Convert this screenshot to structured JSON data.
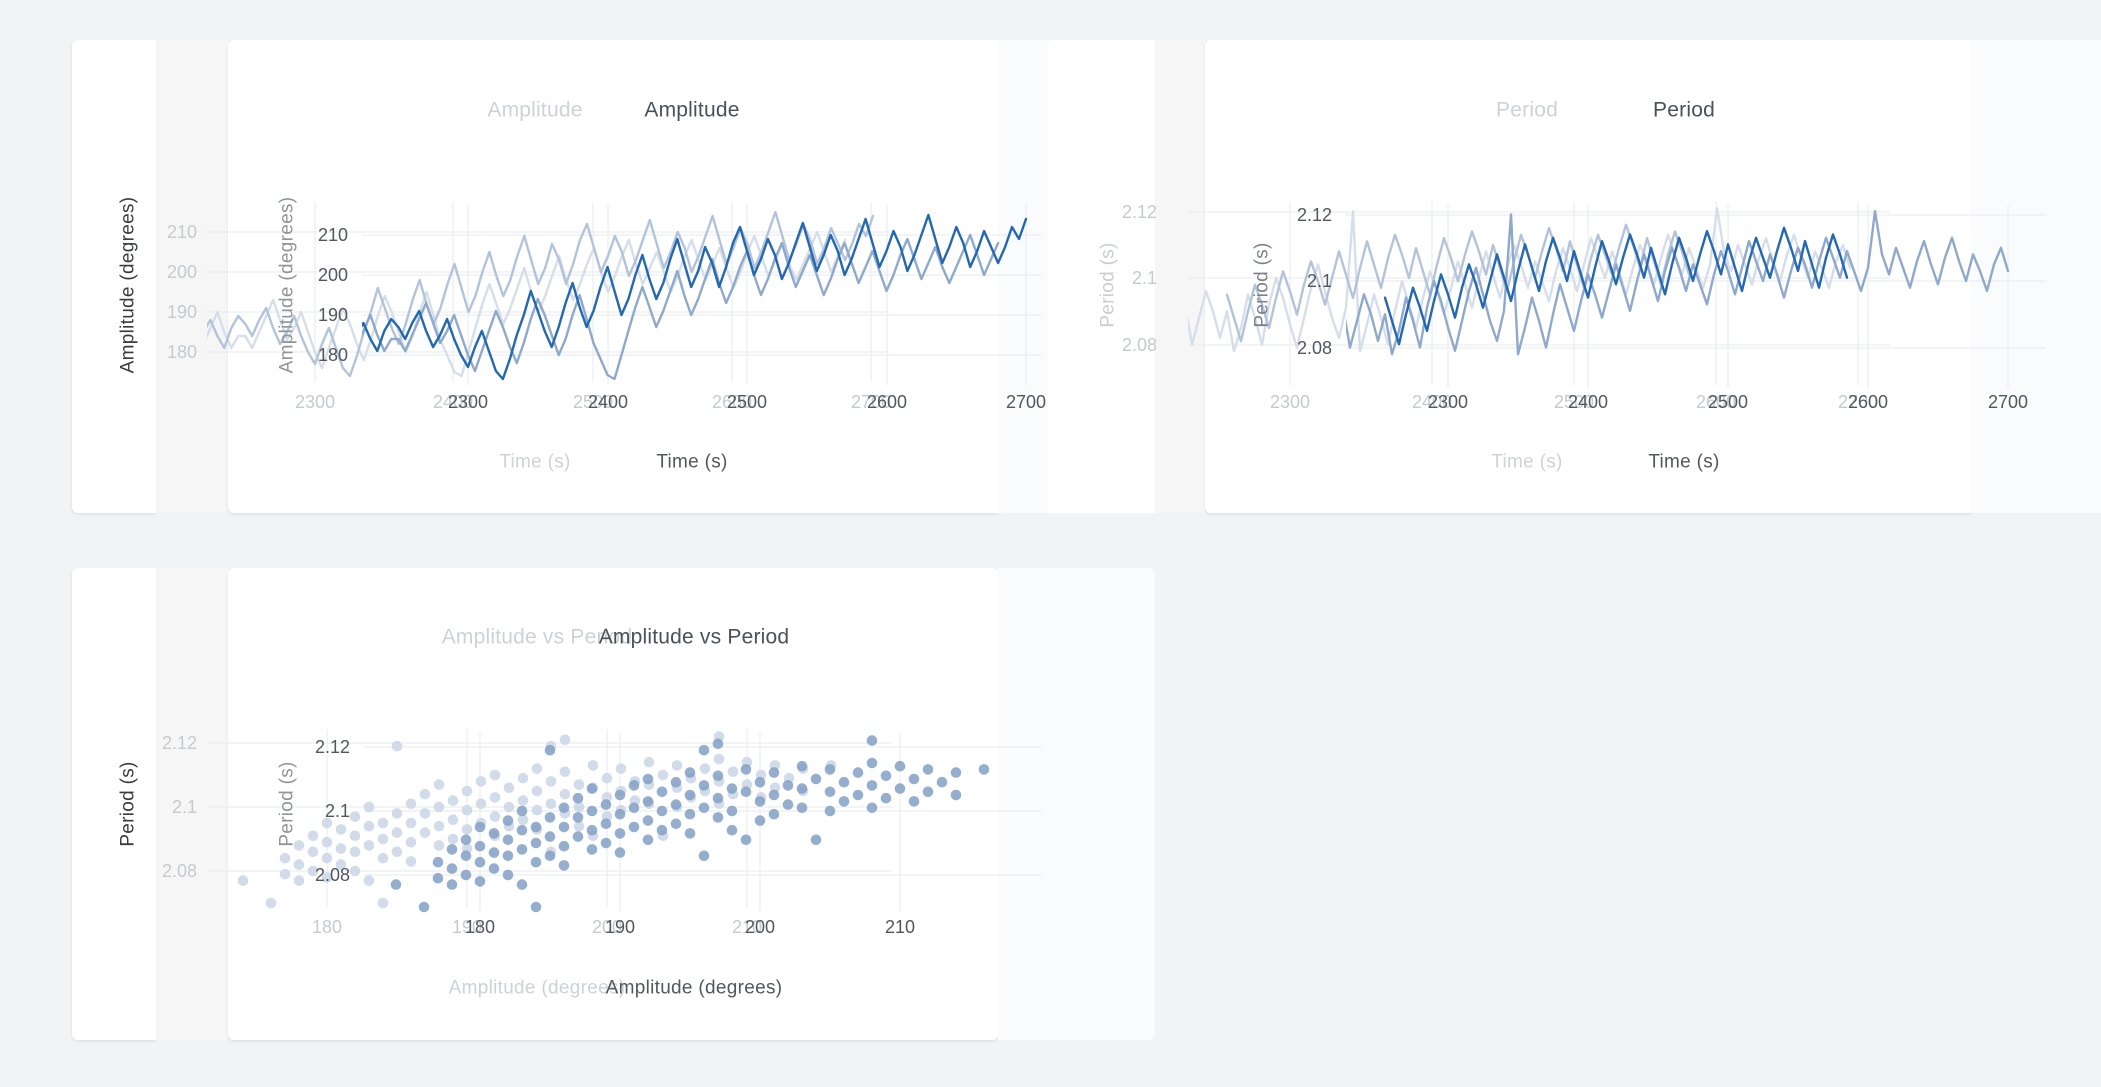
{
  "page": {
    "background": "#f2f3f4",
    "card_background": "#ffffff",
    "gap_strip_color": "#f6f6f7",
    "faint_strip_color": "#fafbfc",
    "colors": {
      "title_solid": "#4b5158",
      "title_ghost": "#ced2d6",
      "tick_solid": "#53575c",
      "tick_ghost": "#c5cacd",
      "ylabel_dark": "#383c41",
      "ylabel_gray": "#90959b",
      "ylabel_period_solid": "#7d828a",
      "ylabel_period_ghost": "#c9ced3",
      "grid": "#ebedef",
      "series1_solid": "#2368b0",
      "series2_solid": "#8fa9cc",
      "series1_ghost": "#b3c3da",
      "series2_ghost": "#d6deea",
      "scatter_solid": "#84a0c6",
      "scatter_ghost": "#ccd7e7"
    }
  },
  "charts": [
    {
      "id": "amplitude",
      "title": "Amplitude",
      "xlabel": "Time (s)",
      "ylabel": "Amplitude (degrees)",
      "yticks": [
        "210",
        "200",
        "190",
        "180"
      ],
      "xticks": [
        "2300",
        "2400",
        "2500",
        "2600",
        "2700"
      ]
    },
    {
      "id": "period",
      "title": "Period",
      "xlabel": "Time (s)",
      "ylabel": "Period (s)",
      "yticks": [
        "2.12",
        "2.1",
        "2.08"
      ],
      "xticks": [
        "2300",
        "2400",
        "2500",
        "2600",
        "2700"
      ]
    },
    {
      "id": "amp-vs-period",
      "title": "Amplitude vs Period",
      "xlabel": "Amplitude (degrees)",
      "ylabel": "Period (s)",
      "yticks": [
        "2.12",
        "2.1",
        "2.08"
      ],
      "xticks": [
        "180",
        "190",
        "200",
        "210"
      ]
    }
  ],
  "chart_data": [
    {
      "type": "line",
      "title": "Amplitude",
      "xlabel": "Time (s)",
      "ylabel": "Amplitude (degrees)",
      "x_range": [
        2220,
        2710
      ],
      "y_range": [
        172,
        216
      ],
      "xticks": [
        2300,
        2400,
        2500,
        2600,
        2700
      ],
      "yticks": [
        210,
        200,
        190,
        180
      ],
      "grid": true,
      "legend": "none",
      "series": [
        {
          "name": "amplitude-run-1",
          "x_start": 2220,
          "x_step": 5,
          "values": [
            185,
            188,
            184,
            181,
            186,
            189,
            187,
            184,
            188,
            191,
            186,
            182,
            185,
            189,
            184,
            180,
            177,
            182,
            186,
            181,
            176,
            174,
            179,
            185,
            190,
            196,
            191,
            186,
            182,
            187,
            193,
            198,
            192,
            187,
            191,
            197,
            202,
            196,
            190,
            194,
            200,
            205,
            199,
            194,
            198,
            204,
            209,
            203,
            197,
            201,
            207,
            203,
            197,
            202,
            208,
            212,
            206,
            200,
            204,
            209,
            205,
            199,
            203,
            208,
            213,
            207,
            201,
            205,
            210,
            206,
            200,
            204,
            209,
            214,
            208,
            202,
            206,
            211,
            207,
            201,
            205,
            210,
            215,
            209,
            203,
            207,
            212,
            208,
            202,
            206,
            211,
            207,
            203,
            207,
            212,
            209,
            214
          ]
        },
        {
          "name": "amplitude-run-2",
          "x_start": 2220,
          "x_step": 5,
          "values": [
            182,
            186,
            190,
            185,
            181,
            184,
            184,
            181,
            185,
            189,
            193,
            188,
            183,
            186,
            190,
            185,
            180,
            176,
            181,
            186,
            191,
            187,
            182,
            178,
            183,
            189,
            194,
            190,
            185,
            180,
            184,
            190,
            195,
            189,
            183,
            179,
            175,
            174,
            180,
            186,
            192,
            197,
            192,
            187,
            191,
            196,
            201,
            195,
            190,
            194,
            199,
            204,
            198,
            193,
            197,
            202,
            206,
            200,
            195,
            199,
            204,
            208,
            202,
            197,
            201,
            205,
            200,
            195,
            199,
            204,
            208,
            203,
            198,
            202,
            206,
            201,
            196,
            200,
            205,
            209,
            204,
            199,
            203,
            207,
            202,
            198,
            202,
            206,
            210,
            205,
            200,
            204,
            208
          ]
        }
      ]
    },
    {
      "type": "line",
      "title": "Period",
      "xlabel": "Time (s)",
      "ylabel": "Period (s)",
      "x_range": [
        2220,
        2710
      ],
      "y_range": [
        2.065,
        2.125
      ],
      "xticks": [
        2300,
        2400,
        2500,
        2600,
        2700
      ],
      "yticks": [
        2.12,
        2.1,
        2.08
      ],
      "grid": true,
      "legend": "none",
      "series": [
        {
          "name": "period-run-1",
          "x_start": 2255,
          "x_step": 5,
          "values": [
            2.095,
            2.088,
            2.081,
            2.09,
            2.098,
            2.092,
            2.085,
            2.094,
            2.102,
            2.096,
            2.089,
            2.098,
            2.105,
            2.099,
            2.092,
            2.1,
            2.108,
            2.101,
            2.094,
            2.103,
            2.111,
            2.104,
            2.097,
            2.106,
            2.113,
            2.107,
            2.1,
            2.109,
            2.102,
            2.095,
            2.104,
            2.112,
            2.106,
            2.099,
            2.107,
            2.114,
            2.108,
            2.101,
            2.11,
            2.103,
            2.096,
            2.105,
            2.113,
            2.107,
            2.1,
            2.108,
            2.115,
            2.109,
            2.102,
            2.111,
            2.104,
            2.097,
            2.106,
            2.113,
            2.107,
            2.101,
            2.109,
            2.116,
            2.11,
            2.103,
            2.112,
            2.105,
            2.098,
            2.107,
            2.114,
            2.108,
            2.101
          ]
        },
        {
          "name": "period-run-2",
          "x_start": 2220,
          "x_step": 5,
          "values": [
            2.085,
            2.092,
            2.08,
            2.088,
            2.096,
            2.09,
            2.082,
            2.09,
            2.078,
            2.085,
            2.095,
            2.088,
            2.08,
            2.092,
            2.1,
            2.094,
            2.086,
            2.079,
            2.088,
            2.097,
            2.104,
            2.096,
            2.088,
            2.082,
            2.091,
            2.12,
            2.078,
            2.086,
            2.095,
            2.088,
            2.08,
            2.09,
            2.099,
            2.092,
            2.085,
            2.094,
            2.102,
            2.096,
            2.089,
            2.097,
            2.105,
            2.098,
            2.091,
            2.1,
            2.108,
            2.101,
            2.094,
            2.103,
            2.11,
            2.104,
            2.097,
            2.105,
            2.099,
            2.093,
            2.102,
            2.109,
            2.103,
            2.096,
            2.104,
            2.112,
            2.106,
            2.1,
            2.108,
            2.102,
            2.095,
            2.103,
            2.11,
            2.105,
            2.098,
            2.106,
            2.113,
            2.107,
            2.101,
            2.109,
            2.103,
            2.097,
            2.104,
            2.121,
            2.108,
            2.102,
            2.11,
            2.104,
            2.098,
            2.106,
            2.112,
            2.105,
            2.099,
            2.107,
            2.113,
            2.106,
            2.1,
            2.108,
            2.103,
            2.097,
            2.105,
            2.11,
            2.103
          ]
        }
      ]
    },
    {
      "type": "scatter",
      "title": "Amplitude vs Period",
      "xlabel": "Amplitude (degrees)",
      "ylabel": "Period (s)",
      "x_range": [
        172,
        218
      ],
      "y_range": [
        2.065,
        2.125
      ],
      "xticks": [
        180,
        190,
        200,
        210
      ],
      "yticks": [
        2.12,
        2.1,
        2.08
      ],
      "grid": true,
      "legend": "none",
      "points": [
        [
          174,
          2.077
        ],
        [
          176,
          2.07
        ],
        [
          177,
          2.084
        ],
        [
          177,
          2.079
        ],
        [
          178,
          2.088
        ],
        [
          178,
          2.082
        ],
        [
          178,
          2.077
        ],
        [
          179,
          2.091
        ],
        [
          179,
          2.086
        ],
        [
          179,
          2.08
        ],
        [
          180,
          2.095
        ],
        [
          180,
          2.089
        ],
        [
          180,
          2.084
        ],
        [
          180,
          2.078
        ],
        [
          181,
          2.093
        ],
        [
          181,
          2.087
        ],
        [
          181,
          2.082
        ],
        [
          182,
          2.097
        ],
        [
          182,
          2.091
        ],
        [
          182,
          2.086
        ],
        [
          182,
          2.08
        ],
        [
          183,
          2.1
        ],
        [
          183,
          2.094
        ],
        [
          183,
          2.088
        ],
        [
          183,
          2.077
        ],
        [
          184,
          2.07
        ],
        [
          184,
          2.095
        ],
        [
          184,
          2.09
        ],
        [
          184,
          2.084
        ],
        [
          185,
          2.119
        ],
        [
          185,
          2.098
        ],
        [
          185,
          2.092
        ],
        [
          185,
          2.086
        ],
        [
          186,
          2.101
        ],
        [
          186,
          2.095
        ],
        [
          186,
          2.089
        ],
        [
          186,
          2.083
        ],
        [
          187,
          2.104
        ],
        [
          187,
          2.098
        ],
        [
          187,
          2.092
        ],
        [
          188,
          2.107
        ],
        [
          188,
          2.1
        ],
        [
          188,
          2.094
        ],
        [
          188,
          2.088
        ],
        [
          189,
          2.102
        ],
        [
          189,
          2.096
        ],
        [
          189,
          2.09
        ],
        [
          190,
          2.105
        ],
        [
          190,
          2.099
        ],
        [
          190,
          2.093
        ],
        [
          190,
          2.087
        ],
        [
          191,
          2.108
        ],
        [
          191,
          2.101
        ],
        [
          191,
          2.095
        ],
        [
          192,
          2.11
        ],
        [
          192,
          2.103
        ],
        [
          192,
          2.097
        ],
        [
          192,
          2.091
        ],
        [
          193,
          2.106
        ],
        [
          193,
          2.1
        ],
        [
          193,
          2.094
        ],
        [
          194,
          2.109
        ],
        [
          194,
          2.102
        ],
        [
          194,
          2.096
        ],
        [
          195,
          2.112
        ],
        [
          195,
          2.105
        ],
        [
          195,
          2.099
        ],
        [
          195,
          2.093
        ],
        [
          196,
          2.119
        ],
        [
          196,
          2.108
        ],
        [
          196,
          2.101
        ],
        [
          196,
          2.086
        ],
        [
          197,
          2.121
        ],
        [
          197,
          2.111
        ],
        [
          197,
          2.104
        ],
        [
          197,
          2.098
        ],
        [
          198,
          2.107
        ],
        [
          198,
          2.1
        ],
        [
          198,
          2.094
        ],
        [
          199,
          2.113
        ],
        [
          199,
          2.106
        ],
        [
          199,
          2.091
        ],
        [
          200,
          2.109
        ],
        [
          200,
          2.103
        ],
        [
          200,
          2.097
        ],
        [
          201,
          2.112
        ],
        [
          201,
          2.105
        ],
        [
          201,
          2.099
        ],
        [
          202,
          2.108
        ],
        [
          202,
          2.102
        ],
        [
          203,
          2.114
        ],
        [
          203,
          2.107
        ],
        [
          203,
          2.101
        ],
        [
          204,
          2.11
        ],
        [
          204,
          2.091
        ],
        [
          205,
          2.113
        ],
        [
          205,
          2.106
        ],
        [
          205,
          2.1
        ],
        [
          206,
          2.109
        ],
        [
          206,
          2.103
        ],
        [
          207,
          2.112
        ],
        [
          207,
          2.105
        ],
        [
          208,
          2.122
        ],
        [
          208,
          2.115
        ],
        [
          208,
          2.108
        ],
        [
          208,
          2.101
        ],
        [
          209,
          2.111
        ],
        [
          209,
          2.104
        ],
        [
          210,
          2.114
        ],
        [
          210,
          2.107
        ],
        [
          211,
          2.11
        ],
        [
          211,
          2.103
        ],
        [
          212,
          2.113
        ],
        [
          212,
          2.106
        ],
        [
          213,
          2.109
        ],
        [
          214,
          2.112
        ],
        [
          214,
          2.105
        ],
        [
          216,
          2.113
        ]
      ]
    }
  ]
}
